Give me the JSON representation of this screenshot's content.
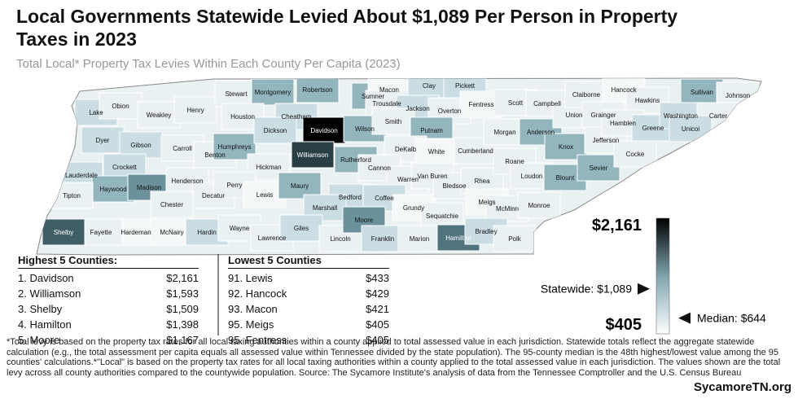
{
  "header": {
    "title_lines": [
      "Local Governments Statewide Levied About $1,089 Per Person in Property",
      "Taxes in 2023"
    ],
    "subtitle": "Total Local* Property Tax Levies Within Each County Per Capita (2023)"
  },
  "map": {
    "counties": [
      {
        "name": "Lake",
        "color": "#c9dde2"
      },
      {
        "name": "Obion",
        "color": "#e9f1f3"
      },
      {
        "name": "Weakley",
        "color": "#e9f1f3"
      },
      {
        "name": "Henry",
        "color": "#e9f1f3"
      },
      {
        "name": "Dyer",
        "color": "#c9dde2"
      },
      {
        "name": "Gibson",
        "color": "#c9dde2"
      },
      {
        "name": "Carroll",
        "color": "#e9f1f3"
      },
      {
        "name": "Benton",
        "color": "#e9f1f3"
      },
      {
        "name": "Crockett",
        "color": "#c9dde2"
      },
      {
        "name": "Lauderdale",
        "color": "#c9dde2"
      },
      {
        "name": "Haywood",
        "color": "#92b5be"
      },
      {
        "name": "Madison",
        "color": "#6b929c"
      },
      {
        "name": "Henderson",
        "color": "#e9f1f3"
      },
      {
        "name": "Decatur",
        "color": "#e9f1f3"
      },
      {
        "name": "Tipton",
        "color": "#e9f1f3"
      },
      {
        "name": "Chester",
        "color": "#e9f1f3"
      },
      {
        "name": "Hardeman",
        "color": "#f4f8f9"
      },
      {
        "name": "Fayette",
        "color": "#e9f1f3"
      },
      {
        "name": "Shelby",
        "color": "#3f5e66"
      },
      {
        "name": "McNairy",
        "color": "#f4f8f9"
      },
      {
        "name": "Hardin",
        "color": "#c9dde2"
      },
      {
        "name": "Stewart",
        "color": "#e9f1f3"
      },
      {
        "name": "Montgomery",
        "color": "#92b5be"
      },
      {
        "name": "Robertson",
        "color": "#92b5be"
      },
      {
        "name": "Sumner",
        "color": "#92b5be"
      },
      {
        "name": "Macon",
        "color": "#f4f8f9"
      },
      {
        "name": "Clay",
        "color": "#c9dde2"
      },
      {
        "name": "Pickett",
        "color": "#c9dde2"
      },
      {
        "name": "Houston",
        "color": "#e9f1f3"
      },
      {
        "name": "Cheatham",
        "color": "#c9dde2"
      },
      {
        "name": "Davidson",
        "color": "#000000"
      },
      {
        "name": "Trousdale",
        "color": "#e9f1f3"
      },
      {
        "name": "Jackson",
        "color": "#c9dde2"
      },
      {
        "name": "Overton",
        "color": "#e9f1f3"
      },
      {
        "name": "Fentress",
        "color": "#f4f8f9"
      },
      {
        "name": "Humphreys",
        "color": "#92b5be"
      },
      {
        "name": "Dickson",
        "color": "#c9dde2"
      },
      {
        "name": "Williamson",
        "color": "#2a3f44"
      },
      {
        "name": "Wilson",
        "color": "#92b5be"
      },
      {
        "name": "Smith",
        "color": "#e9f1f3"
      },
      {
        "name": "Putnam",
        "color": "#92b5be"
      },
      {
        "name": "DeKalb",
        "color": "#e9f1f3"
      },
      {
        "name": "White",
        "color": "#f4f8f9"
      },
      {
        "name": "Cumberland",
        "color": "#e9f1f3"
      },
      {
        "name": "Hickman",
        "color": "#e9f1f3"
      },
      {
        "name": "Perry",
        "color": "#e9f1f3"
      },
      {
        "name": "Rutherford",
        "color": "#92b5be"
      },
      {
        "name": "Cannon",
        "color": "#e9f1f3"
      },
      {
        "name": "Warren",
        "color": "#e9f1f3"
      },
      {
        "name": "Van Buren",
        "color": "#e9f1f3"
      },
      {
        "name": "Lewis",
        "color": "#f4f8f9"
      },
      {
        "name": "Maury",
        "color": "#92b5be"
      },
      {
        "name": "Bedford",
        "color": "#c9dde2"
      },
      {
        "name": "Coffee",
        "color": "#c9dde2"
      },
      {
        "name": "Marshall",
        "color": "#c9dde2"
      },
      {
        "name": "Grundy",
        "color": "#f4f8f9"
      },
      {
        "name": "Sequatchie",
        "color": "#e9f1f3"
      },
      {
        "name": "Bledsoe",
        "color": "#e9f1f3"
      },
      {
        "name": "Wayne",
        "color": "#e9f1f3"
      },
      {
        "name": "Lawrence",
        "color": "#e9f1f3"
      },
      {
        "name": "Giles",
        "color": "#c9dde2"
      },
      {
        "name": "Lincoln",
        "color": "#e9f1f3"
      },
      {
        "name": "Moore",
        "color": "#6b929c"
      },
      {
        "name": "Franklin",
        "color": "#c9dde2"
      },
      {
        "name": "Marion",
        "color": "#e9f1f3"
      },
      {
        "name": "Hamilton",
        "color": "#4f747d"
      },
      {
        "name": "Rhea",
        "color": "#e9f1f3"
      },
      {
        "name": "Meigs",
        "color": "#f4f8f9"
      },
      {
        "name": "McMinn",
        "color": "#e9f1f3"
      },
      {
        "name": "Bradley",
        "color": "#c9dde2"
      },
      {
        "name": "Polk",
        "color": "#e9f1f3"
      },
      {
        "name": "Monroe",
        "color": "#e9f1f3"
      },
      {
        "name": "Morgan",
        "color": "#e9f1f3"
      },
      {
        "name": "Scott",
        "color": "#e9f1f3"
      },
      {
        "name": "Campbell",
        "color": "#e9f1f3"
      },
      {
        "name": "Roane",
        "color": "#e9f1f3"
      },
      {
        "name": "Anderson",
        "color": "#92b5be"
      },
      {
        "name": "Union",
        "color": "#e9f1f3"
      },
      {
        "name": "Claiborne",
        "color": "#e9f1f3"
      },
      {
        "name": "Hancock",
        "color": "#f4f8f9"
      },
      {
        "name": "Grainger",
        "color": "#e9f1f3"
      },
      {
        "name": "Hawkins",
        "color": "#e9f1f3"
      },
      {
        "name": "Sullivan",
        "color": "#92b5be"
      },
      {
        "name": "Johnson",
        "color": "#e9f1f3"
      },
      {
        "name": "Knox",
        "color": "#92b5be"
      },
      {
        "name": "Loudon",
        "color": "#e9f1f3"
      },
      {
        "name": "Blount",
        "color": "#92b5be"
      },
      {
        "name": "Sevier",
        "color": "#92b5be"
      },
      {
        "name": "Jefferson",
        "color": "#e9f1f3"
      },
      {
        "name": "Hamblen",
        "color": "#e9f1f3"
      },
      {
        "name": "Cocke",
        "color": "#e9f1f3"
      },
      {
        "name": "Greene",
        "color": "#c9dde2"
      },
      {
        "name": "Washington",
        "color": "#c9dde2"
      },
      {
        "name": "Carter",
        "color": "#e9f1f3"
      },
      {
        "name": "Unicoi",
        "color": "#c9dde2"
      }
    ]
  },
  "highest": {
    "title": "Highest 5 Counties:",
    "rows": [
      [
        "1. Davidson",
        "$2,161"
      ],
      [
        "2. Williamson",
        "$1,593"
      ],
      [
        "3. Shelby",
        "$1,509"
      ],
      [
        "4. Hamilton",
        "$1,398"
      ],
      [
        "5. Moore",
        "$1,167"
      ]
    ]
  },
  "lowest": {
    "title": "Lowest 5 Counties",
    "rows": [
      [
        "91. Lewis",
        "$433"
      ],
      [
        "92. Hancock",
        "$429"
      ],
      [
        "93. Macon",
        "$421"
      ],
      [
        "95. Meigs",
        "$405"
      ],
      [
        "95. Fentress",
        "$405"
      ]
    ]
  },
  "legend": {
    "max": {
      "value": 2161,
      "label": "$2,161"
    },
    "min": {
      "value": 405,
      "label": "$405"
    },
    "markers": [
      {
        "value": 1089,
        "label": "Statewide: $1,089"
      },
      {
        "value": 644,
        "label": "Median: $644"
      }
    ]
  },
  "footnote": "*Total levy is based on the property tax rates for all local taxing authorities within a county applied to total assessed value in each jurisdiction. Statewide totals reflect the aggregate statewide calculation (e.g., the total assessment per capita equals all assessed value within Tennessee divided by the state population). The 95-county median is the 48th highest/lowest value among the 95 counties' calculations.*\"Local\" is based on the property tax rates for all local taxing authorities within a county applied to the total assessed value in each jurisdiction. The values shown are the total levy across all county authorities compared to the countywide population. Source: The Sycamore Institute's analysis of data from the Tennessee Comptroller and the U.S. Census Bureau",
  "brand": "SycamoreTN.org"
}
